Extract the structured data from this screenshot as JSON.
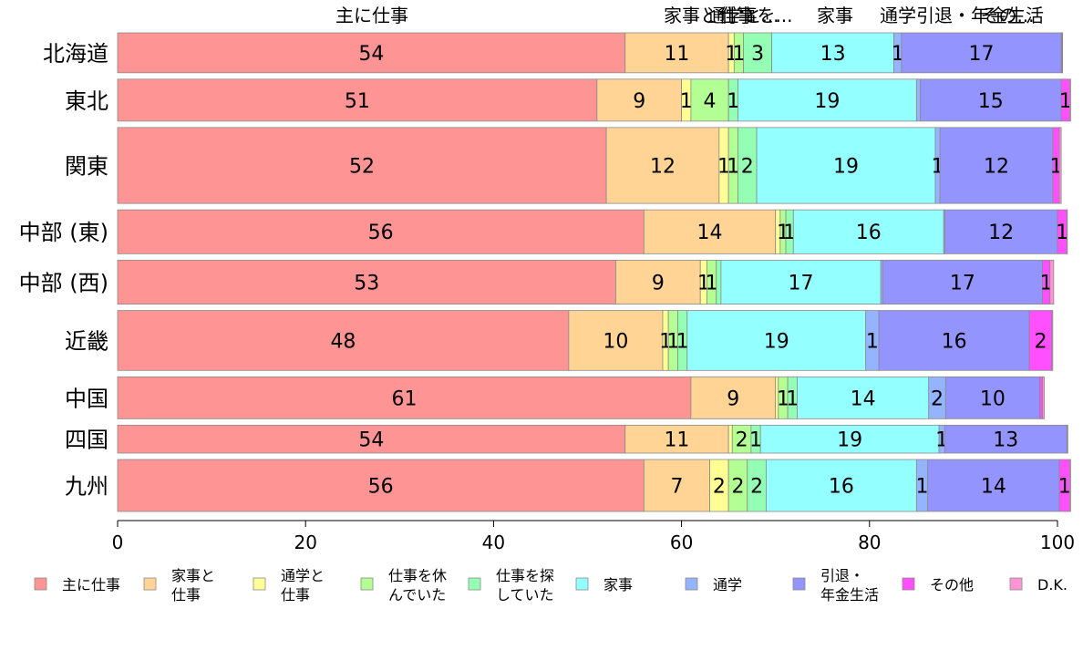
{
  "chart_data": {
    "type": "bar",
    "orientation": "horizontal",
    "stacked": true,
    "categories": [
      "北海道",
      "東北",
      "関東",
      "中部 (東)",
      "中部 (西)",
      "近畿",
      "中国",
      "四国",
      "九州"
    ],
    "top_labels": [
      "主に仕事",
      "家事と仕事",
      "通学と...",
      "仕事を...",
      "家事",
      "通学",
      "引退・年金生活",
      "その..."
    ],
    "series": [
      {
        "name": "主に仕事",
        "legend": [
          "主に仕事"
        ],
        "color": "#ff9494",
        "values": [
          54,
          51,
          52,
          56,
          53,
          48,
          61,
          54,
          56
        ]
      },
      {
        "name": "家事と仕事",
        "legend": [
          "家事と",
          "仕事"
        ],
        "color": "#ffd494",
        "values": [
          11,
          9,
          12,
          14,
          9,
          10,
          9,
          11,
          7
        ]
      },
      {
        "name": "通学と仕事",
        "legend": [
          "通学と",
          "仕事"
        ],
        "color": "#ffff94",
        "values": [
          0.6,
          1,
          1,
          0.5,
          0.7,
          0.6,
          0.3,
          0.4,
          2
        ]
      },
      {
        "name": "仕事を休んでいた",
        "legend": [
          "仕事を休",
          "んでいた"
        ],
        "color": "#b4ff94",
        "values": [
          1,
          4,
          1,
          0.6,
          1,
          1,
          1,
          2,
          2
        ]
      },
      {
        "name": "仕事を探していた",
        "legend": [
          "仕事を探",
          "していた"
        ],
        "color": "#94ffb4",
        "values": [
          3,
          1,
          2,
          0.8,
          0.5,
          1,
          1,
          1,
          2
        ]
      },
      {
        "name": "家事",
        "legend": [
          "家事"
        ],
        "color": "#94ffff",
        "values": [
          13,
          19,
          19,
          16,
          17,
          19,
          14,
          19,
          16
        ]
      },
      {
        "name": "通学",
        "legend": [
          "通学"
        ],
        "color": "#94b4ff",
        "values": [
          0.8,
          0.4,
          0.5,
          0.1,
          0.2,
          1.4,
          1.8,
          0.6,
          1.2
        ]
      },
      {
        "name": "引退・年金生活",
        "legend": [
          "引退・",
          "年金生活"
        ],
        "color": "#9494ff",
        "values": [
          17,
          15,
          12,
          12,
          17,
          16,
          10,
          13,
          14
        ]
      },
      {
        "name": "その他",
        "legend": [
          "その他"
        ],
        "color": "#ff4fff",
        "values": [
          0.1,
          0.9,
          0.7,
          1,
          0.8,
          2.4,
          0.3,
          0.05,
          1.1
        ]
      },
      {
        "name": "D.K.",
        "legend": [
          "D.K."
        ],
        "color": "#ff94d4",
        "values": [
          0.05,
          0.1,
          0.2,
          0.05,
          0.4,
          0.1,
          0.2,
          0.05,
          0.1
        ]
      }
    ],
    "bar_labels": [
      [
        "54",
        "11",
        "1",
        "1",
        "3",
        "13",
        "1",
        "17",
        "",
        ""
      ],
      [
        "51",
        "9",
        "1",
        "4",
        "1",
        "19",
        "",
        "15",
        "1",
        ""
      ],
      [
        "52",
        "12",
        "1",
        "1",
        "2",
        "19",
        "1",
        "12",
        "1",
        ""
      ],
      [
        "56",
        "14",
        "",
        "1",
        "1",
        "16",
        "",
        "12",
        "1",
        ""
      ],
      [
        "53",
        "9",
        "1",
        "1",
        "",
        "17",
        "",
        "17",
        "1",
        ""
      ],
      [
        "48",
        "10",
        "1",
        "1",
        "1",
        "19",
        "1",
        "16",
        "2",
        ""
      ],
      [
        "61",
        "9",
        "",
        "1",
        "1",
        "14",
        "2",
        "10",
        "",
        ""
      ],
      [
        "54",
        "11",
        "",
        "2",
        "1",
        "19",
        "1",
        "13",
        "",
        ""
      ],
      [
        "56",
        "7",
        "2",
        "2",
        "2",
        "16",
        "1",
        "14",
        "1",
        ""
      ]
    ],
    "row_weights": [
      1.0,
      1.05,
      1.9,
      1.1,
      1.1,
      1.5,
      1.05,
      0.7,
      1.3
    ],
    "xlim": [
      0,
      100
    ],
    "xticks": [
      0,
      20,
      40,
      60,
      80,
      100
    ],
    "legend_position": "bottom",
    "xlabel": "",
    "ylabel": ""
  }
}
